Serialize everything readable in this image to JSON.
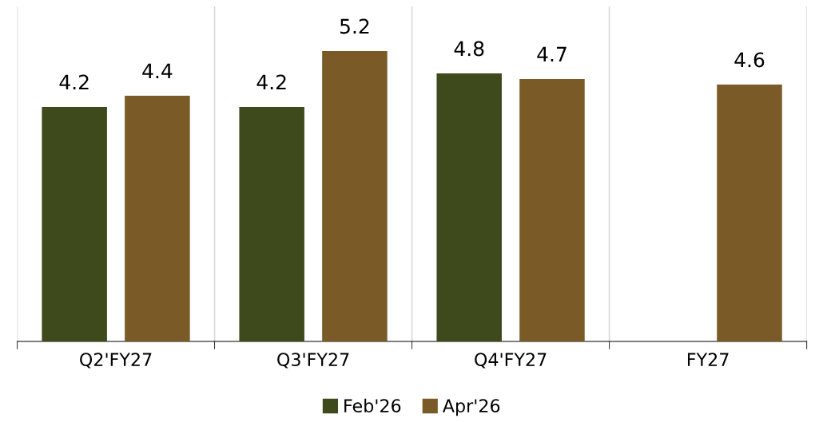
{
  "chart_data": {
    "type": "bar",
    "categories": [
      "Q2'FY27",
      "Q3'FY27",
      "Q4'FY27",
      "FY27"
    ],
    "series": [
      {
        "name": "Feb'26",
        "color": "#3f4a1c",
        "values": [
          4.2,
          4.2,
          4.8,
          null
        ]
      },
      {
        "name": "Apr'26",
        "color": "#7a5b27",
        "values": [
          4.4,
          5.2,
          4.7,
          4.6
        ]
      }
    ],
    "ylim": [
      0,
      6
    ],
    "data_labels": true,
    "grid": "x",
    "legend": "bottom",
    "tick_labels": "x"
  }
}
